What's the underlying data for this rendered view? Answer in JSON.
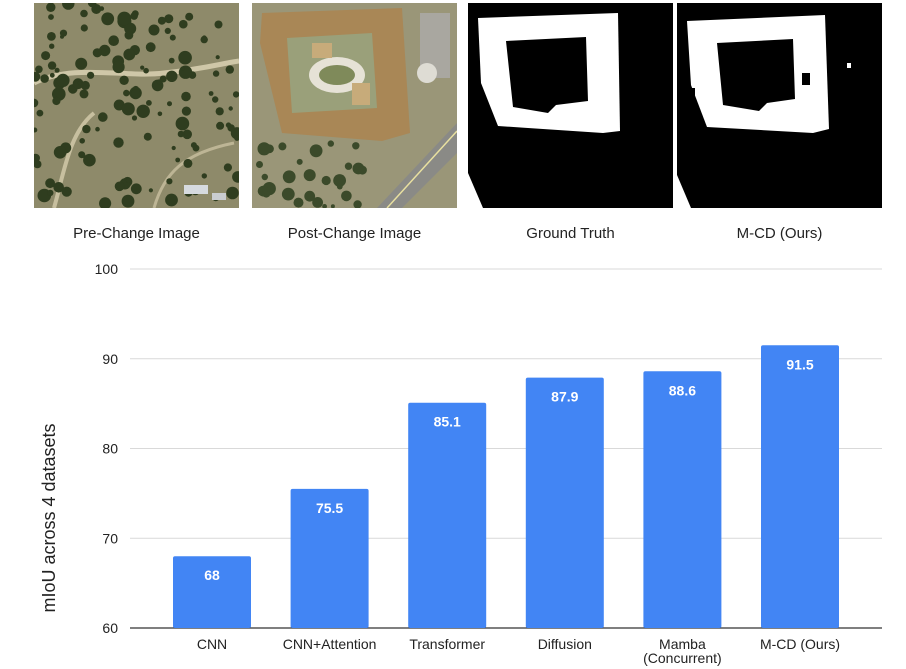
{
  "figure": {
    "panels": [
      {
        "caption": "Pre-Change Image",
        "kind": "aerial-pre"
      },
      {
        "caption": "Post-Change Image",
        "kind": "aerial-post"
      },
      {
        "caption": "Ground Truth",
        "kind": "mask-gt"
      },
      {
        "caption": "M-CD (Ours)",
        "kind": "mask-pred"
      }
    ]
  },
  "colors": {
    "bar": "#4285f4",
    "grid": "#d9d9d9",
    "mask_bg": "#000000",
    "mask_fg": "#ffffff"
  },
  "chart_data": {
    "type": "bar",
    "categories": [
      "CNN",
      "CNN+Attention",
      "Transformer",
      "Diffusion",
      "Mamba\n(Concurrent)",
      "M-CD (Ours)"
    ],
    "values": [
      68,
      75.5,
      85.1,
      87.9,
      88.6,
      91.5
    ],
    "value_labels": [
      "68",
      "75.5",
      "85.1",
      "87.9",
      "88.6",
      "91.5"
    ],
    "title": "",
    "xlabel": "",
    "ylabel": "mIoU across 4 datasets",
    "ylim": [
      60,
      100
    ],
    "yticks": [
      60,
      70,
      80,
      90,
      100
    ],
    "grid": true,
    "legend": "none"
  }
}
